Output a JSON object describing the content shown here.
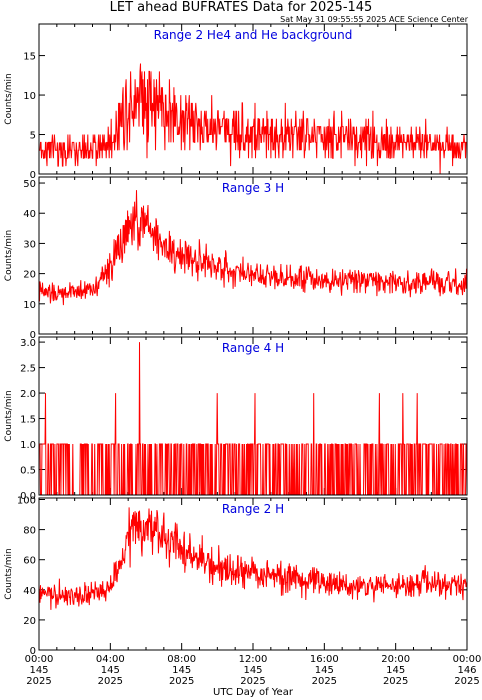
{
  "title": "LET ahead BUFRATES Data for 2025-145",
  "timestamp": "Sat May 31 09:55:55 2025 ACE Science Center",
  "xlabel": "UTC Day of Year",
  "x_ticks": [
    {
      "time": "00:00",
      "doy": "145",
      "year": "2025"
    },
    {
      "time": "04:00",
      "doy": "145",
      "year": "2025"
    },
    {
      "time": "08:00",
      "doy": "145",
      "year": "2025"
    },
    {
      "time": "12:00",
      "doy": "145",
      "year": "2025"
    },
    {
      "time": "16:00",
      "doy": "145",
      "year": "2025"
    },
    {
      "time": "20:00",
      "doy": "145",
      "year": "2025"
    },
    {
      "time": "00:00",
      "doy": "146",
      "year": "2025"
    }
  ],
  "colors": {
    "series": "#ff0000",
    "panel_title": "#0000dd",
    "axes": "#000000",
    "background": "#ffffff"
  },
  "chart_data": [
    {
      "type": "line",
      "title": "Range 2 He4 and He background",
      "ylabel": "Counts/min",
      "ylim": [
        0,
        19
      ],
      "yticks": [
        0,
        5,
        10,
        15
      ],
      "x_range_hours": [
        0,
        24
      ],
      "grid": false,
      "series": [
        {
          "x": [
            0,
            1,
            2,
            3,
            4,
            5,
            5.5,
            6,
            6.5,
            7,
            8,
            9,
            10,
            12,
            14,
            16,
            18,
            20,
            22,
            24
          ],
          "values": [
            3,
            3,
            3,
            3,
            4,
            9,
            11,
            10,
            9,
            8,
            7,
            6,
            6,
            5,
            5,
            4.5,
            4.5,
            4,
            4,
            3.5
          ]
        }
      ]
    },
    {
      "type": "line",
      "title": "Range 3 H",
      "ylabel": "Counts/min",
      "ylim": [
        0,
        52
      ],
      "yticks": [
        0,
        10,
        20,
        30,
        40,
        50
      ],
      "x_range_hours": [
        0,
        24
      ],
      "grid": false,
      "series": [
        {
          "x": [
            0,
            1,
            2,
            3,
            4,
            4.5,
            5,
            5.5,
            6,
            6.5,
            7,
            8,
            9,
            10,
            12,
            14,
            16,
            18,
            20,
            22,
            24
          ],
          "values": [
            14,
            13,
            14,
            15,
            22,
            29,
            34,
            37,
            36,
            33,
            29,
            26,
            24,
            22,
            20,
            19,
            18,
            18,
            17,
            17,
            16
          ]
        }
      ]
    },
    {
      "type": "line",
      "title": "Range 4 H",
      "ylabel": "Counts/min",
      "ylim": [
        0,
        3.1
      ],
      "yticks": [
        0.0,
        0.5,
        1.0,
        1.5,
        2.0,
        2.5,
        3.0
      ],
      "x_range_hours": [
        0,
        24
      ],
      "grid": false,
      "series": [
        {
          "x": [
            0,
            24
          ],
          "values": [
            0.5,
            0.5
          ],
          "spikes": [
            {
              "x": 0.35,
              "value": 2.0
            },
            {
              "x": 4.3,
              "value": 2.0
            },
            {
              "x": 5.65,
              "value": 3.0
            },
            {
              "x": 10.0,
              "value": 2.0
            },
            {
              "x": 12.1,
              "value": 2.0
            },
            {
              "x": 15.4,
              "value": 2.0
            },
            {
              "x": 19.1,
              "value": 2.0
            },
            {
              "x": 20.4,
              "value": 2.0
            },
            {
              "x": 21.2,
              "value": 2.0
            }
          ]
        }
      ]
    },
    {
      "type": "line",
      "title": "Range 2 H",
      "ylabel": "Counts/min",
      "ylim": [
        0,
        101
      ],
      "yticks": [
        0,
        20,
        40,
        60,
        80,
        100
      ],
      "x_range_hours": [
        0,
        24
      ],
      "grid": false,
      "series": [
        {
          "x": [
            0,
            1,
            2,
            3,
            4,
            4.5,
            5,
            5.5,
            6,
            6.5,
            7,
            8,
            9,
            10,
            12,
            14,
            16,
            18,
            20,
            22,
            24
          ],
          "values": [
            37,
            36,
            36,
            37,
            40,
            55,
            76,
            81,
            82,
            80,
            75,
            66,
            60,
            55,
            50,
            48,
            44,
            42,
            43,
            44,
            42
          ]
        }
      ]
    }
  ]
}
